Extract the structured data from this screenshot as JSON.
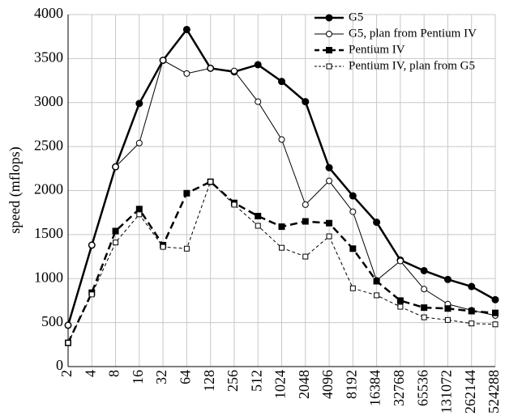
{
  "chart_data": {
    "type": "line",
    "y_label": "speed (mflops)",
    "categories": [
      "2",
      "4",
      "8",
      "16",
      "32",
      "64",
      "128",
      "256",
      "512",
      "1024",
      "2048",
      "4096",
      "8192",
      "16384",
      "32768",
      "65536",
      "131072",
      "262144",
      "524288"
    ],
    "ylim": [
      0,
      4000
    ],
    "yticks": [
      0,
      500,
      1000,
      1500,
      2000,
      2500,
      3000,
      3500,
      4000
    ],
    "grid": true,
    "legend": "top-right",
    "series": [
      {
        "name": "G5",
        "color": "#000000",
        "marker": "circle",
        "filled": true,
        "dashed": false,
        "bold": true,
        "values": [
          470,
          1380,
          2270,
          2990,
          3480,
          3830,
          3390,
          3350,
          3430,
          3240,
          3010,
          2260,
          1940,
          1640,
          1210,
          1090,
          990,
          910,
          760
        ]
      },
      {
        "name": "G5, plan from Pentium IV",
        "color": "#000000",
        "marker": "circle",
        "filled": false,
        "dashed": false,
        "bold": false,
        "values": [
          470,
          1380,
          2270,
          2540,
          3480,
          3330,
          3390,
          3360,
          3010,
          2580,
          1840,
          2110,
          1760,
          980,
          1200,
          880,
          710,
          640,
          580
        ]
      },
      {
        "name": "Pentium IV",
        "color": "#000000",
        "marker": "square",
        "filled": true,
        "dashed": true,
        "bold": true,
        "values": [
          270,
          840,
          1540,
          1790,
          1380,
          1970,
          2100,
          1860,
          1710,
          1590,
          1650,
          1630,
          1340,
          970,
          750,
          670,
          660,
          630,
          610
        ]
      },
      {
        "name": "Pentium IV, plan from G5",
        "color": "#000000",
        "marker": "square",
        "filled": false,
        "dashed": true,
        "bold": false,
        "values": [
          270,
          820,
          1410,
          1730,
          1360,
          1340,
          2100,
          1840,
          1600,
          1350,
          1250,
          1480,
          890,
          810,
          680,
          560,
          530,
          490,
          480
        ]
      }
    ]
  }
}
